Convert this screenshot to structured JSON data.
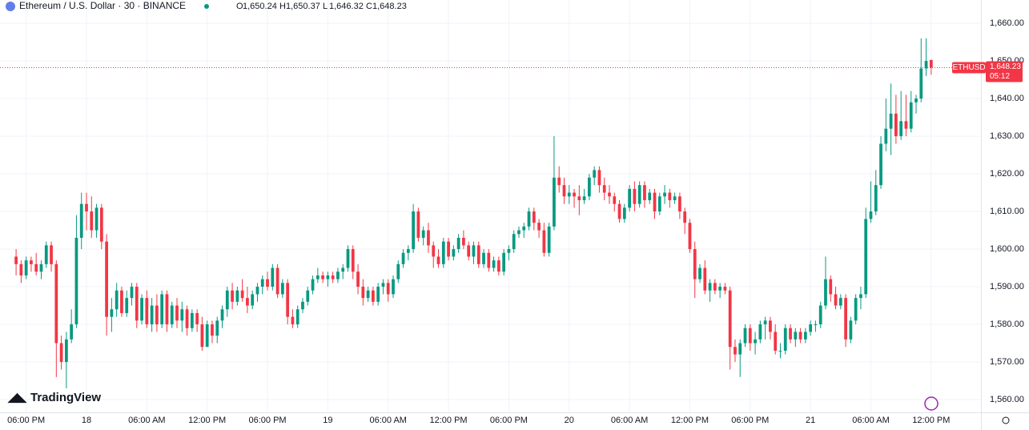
{
  "chart_data": {
    "type": "candlestick",
    "title": "Ethereum / U.S. Dollar · 30 · BINANCE",
    "ohlc_labels": [
      {
        "label": "O",
        "value": "1,650.24"
      },
      {
        "label": "H",
        "value": "1,650.37"
      },
      {
        "label": "L",
        "value": "1,646.32"
      },
      {
        "label": "C",
        "value": "1,648.23"
      }
    ],
    "brand": "TradingView",
    "last_price": {
      "symbol": "ETHUSD",
      "value": 1648.23,
      "label": "1,648.23",
      "countdown": "05:12"
    },
    "up_color": "#089981",
    "down_color": "#f23645",
    "ylim": [
      1556.6,
      1666.2
    ],
    "yticks": [
      {
        "value": 1560,
        "label": "1,560.00"
      },
      {
        "value": 1570,
        "label": "1,570.00"
      },
      {
        "value": 1580,
        "label": "1,580.00"
      },
      {
        "value": 1590,
        "label": "1,590.00"
      },
      {
        "value": 1600,
        "label": "1,600.00"
      },
      {
        "value": 1610,
        "label": "1,610.00"
      },
      {
        "value": 1620,
        "label": "1,620.00"
      },
      {
        "value": 1630,
        "label": "1,630.00"
      },
      {
        "value": 1640,
        "label": "1,640.00"
      },
      {
        "value": 1650,
        "label": "1,650.00"
      },
      {
        "value": 1660,
        "label": "1,660.00"
      }
    ],
    "xlim": [
      -3.2,
      191.9
    ],
    "xticks": [
      {
        "value": 2,
        "label": "06:00 PM"
      },
      {
        "value": 14,
        "label": "18"
      },
      {
        "value": 26,
        "label": "06:00 AM"
      },
      {
        "value": 38,
        "label": "12:00 PM"
      },
      {
        "value": 50,
        "label": "06:00 PM"
      },
      {
        "value": 62,
        "label": "19"
      },
      {
        "value": 74,
        "label": "06:00 AM"
      },
      {
        "value": 86,
        "label": "12:00 PM"
      },
      {
        "value": 98,
        "label": "06:00 PM"
      },
      {
        "value": 110,
        "label": "20"
      },
      {
        "value": 122,
        "label": "06:00 AM"
      },
      {
        "value": 134,
        "label": "12:00 PM"
      },
      {
        "value": 146,
        "label": "06:00 PM"
      },
      {
        "value": 158,
        "label": "21"
      },
      {
        "value": 170,
        "label": "06:00 AM"
      },
      {
        "value": 182,
        "label": "12:00 PM"
      }
    ],
    "grid": true,
    "ohlc": [
      [
        1598,
        1600,
        1593,
        1596
      ],
      [
        1596,
        1597,
        1591,
        1593
      ],
      [
        1593,
        1598,
        1592,
        1597
      ],
      [
        1597,
        1598,
        1594,
        1596
      ],
      [
        1596,
        1599,
        1593,
        1594
      ],
      [
        1594,
        1597,
        1592,
        1596
      ],
      [
        1596,
        1602,
        1595,
        1601
      ],
      [
        1601,
        1602,
        1594,
        1596
      ],
      [
        1596,
        1597,
        1566,
        1575
      ],
      [
        1575,
        1577,
        1568,
        1570
      ],
      [
        1570,
        1578,
        1563,
        1576
      ],
      [
        1576,
        1584,
        1575,
        1580
      ],
      [
        1580,
        1609,
        1579,
        1603
      ],
      [
        1603,
        1615,
        1600,
        1612
      ],
      [
        1612,
        1615,
        1605,
        1610
      ],
      [
        1610,
        1614,
        1603,
        1605
      ],
      [
        1605,
        1612,
        1603,
        1611
      ],
      [
        1611,
        1612,
        1600,
        1602
      ],
      [
        1602,
        1604,
        1577,
        1582
      ],
      [
        1582,
        1587,
        1578,
        1584
      ],
      [
        1584,
        1591,
        1582,
        1589
      ],
      [
        1589,
        1590,
        1582,
        1583
      ],
      [
        1583,
        1589,
        1582,
        1587
      ],
      [
        1587,
        1591,
        1585,
        1590
      ],
      [
        1590,
        1591,
        1579,
        1581
      ],
      [
        1581,
        1588,
        1580,
        1587
      ],
      [
        1587,
        1589,
        1579,
        1580
      ],
      [
        1580,
        1587,
        1578,
        1585
      ],
      [
        1585,
        1588,
        1578,
        1580
      ],
      [
        1580,
        1589,
        1579,
        1588
      ],
      [
        1588,
        1589,
        1578,
        1580
      ],
      [
        1580,
        1586,
        1579,
        1585
      ],
      [
        1585,
        1587,
        1579,
        1581
      ],
      [
        1581,
        1586,
        1578,
        1584
      ],
      [
        1584,
        1585,
        1577,
        1579
      ],
      [
        1579,
        1584,
        1578,
        1583
      ],
      [
        1583,
        1584,
        1578,
        1580
      ],
      [
        1580,
        1582,
        1573,
        1574
      ],
      [
        1574,
        1581,
        1574,
        1580
      ],
      [
        1580,
        1581,
        1575,
        1577
      ],
      [
        1577,
        1582,
        1575,
        1581
      ],
      [
        1581,
        1585,
        1579,
        1584
      ],
      [
        1584,
        1590,
        1582,
        1589
      ],
      [
        1589,
        1591,
        1584,
        1586
      ],
      [
        1586,
        1590,
        1585,
        1589
      ],
      [
        1589,
        1592,
        1586,
        1587
      ],
      [
        1587,
        1590,
        1583,
        1585
      ],
      [
        1585,
        1589,
        1584,
        1588
      ],
      [
        1588,
        1591,
        1586,
        1590
      ],
      [
        1590,
        1593,
        1588,
        1592
      ],
      [
        1592,
        1594,
        1589,
        1590
      ],
      [
        1590,
        1596,
        1589,
        1595
      ],
      [
        1595,
        1596,
        1587,
        1588
      ],
      [
        1588,
        1592,
        1587,
        1591
      ],
      [
        1591,
        1592,
        1580,
        1582
      ],
      [
        1582,
        1584,
        1579,
        1580
      ],
      [
        1580,
        1585,
        1579,
        1584
      ],
      [
        1584,
        1587,
        1583,
        1586
      ],
      [
        1586,
        1590,
        1585,
        1589
      ],
      [
        1589,
        1593,
        1588,
        1592
      ],
      [
        1592,
        1595,
        1591,
        1593
      ],
      [
        1593,
        1594,
        1591,
        1592
      ],
      [
        1592,
        1594,
        1590,
        1593
      ],
      [
        1593,
        1594,
        1591,
        1592
      ],
      [
        1592,
        1595,
        1591,
        1594
      ],
      [
        1594,
        1596,
        1592,
        1595
      ],
      [
        1595,
        1601,
        1594,
        1600
      ],
      [
        1600,
        1601,
        1592,
        1594
      ],
      [
        1594,
        1596,
        1588,
        1590
      ],
      [
        1590,
        1592,
        1585,
        1587
      ],
      [
        1587,
        1590,
        1586,
        1589
      ],
      [
        1589,
        1590,
        1585,
        1586
      ],
      [
        1586,
        1591,
        1585,
        1590
      ],
      [
        1590,
        1592,
        1588,
        1591
      ],
      [
        1591,
        1592,
        1586,
        1588
      ],
      [
        1588,
        1593,
        1587,
        1592
      ],
      [
        1592,
        1597,
        1591,
        1596
      ],
      [
        1596,
        1600,
        1595,
        1599
      ],
      [
        1599,
        1601,
        1597,
        1600
      ],
      [
        1600,
        1612,
        1599,
        1610
      ],
      [
        1610,
        1611,
        1602,
        1603
      ],
      [
        1603,
        1606,
        1601,
        1605
      ],
      [
        1605,
        1607,
        1599,
        1601
      ],
      [
        1601,
        1602,
        1595,
        1598
      ],
      [
        1598,
        1600,
        1595,
        1596
      ],
      [
        1596,
        1603,
        1595,
        1602
      ],
      [
        1602,
        1603,
        1597,
        1598
      ],
      [
        1598,
        1601,
        1597,
        1600
      ],
      [
        1600,
        1604,
        1599,
        1603
      ],
      [
        1603,
        1605,
        1600,
        1601
      ],
      [
        1601,
        1602,
        1597,
        1598
      ],
      [
        1598,
        1602,
        1596,
        1601
      ],
      [
        1601,
        1602,
        1595,
        1596
      ],
      [
        1596,
        1600,
        1595,
        1599
      ],
      [
        1599,
        1600,
        1594,
        1595
      ],
      [
        1595,
        1598,
        1594,
        1597
      ],
      [
        1597,
        1598,
        1593,
        1594
      ],
      [
        1594,
        1600,
        1593,
        1599
      ],
      [
        1599,
        1601,
        1597,
        1600
      ],
      [
        1600,
        1605,
        1599,
        1604
      ],
      [
        1604,
        1606,
        1603,
        1605
      ],
      [
        1605,
        1607,
        1603,
        1606
      ],
      [
        1606,
        1611,
        1605,
        1610
      ],
      [
        1610,
        1611,
        1605,
        1607
      ],
      [
        1607,
        1608,
        1603,
        1605
      ],
      [
        1605,
        1607,
        1598,
        1599
      ],
      [
        1599,
        1607,
        1598,
        1606
      ],
      [
        1606,
        1630,
        1605,
        1619
      ],
      [
        1619,
        1622,
        1615,
        1617
      ],
      [
        1617,
        1619,
        1612,
        1614
      ],
      [
        1614,
        1617,
        1612,
        1615
      ],
      [
        1615,
        1616,
        1611,
        1614
      ],
      [
        1614,
        1617,
        1609,
        1613
      ],
      [
        1613,
        1616,
        1612,
        1614
      ],
      [
        1614,
        1620,
        1613,
        1619
      ],
      [
        1619,
        1622,
        1617,
        1621
      ],
      [
        1621,
        1622,
        1615,
        1617
      ],
      [
        1617,
        1619,
        1613,
        1615
      ],
      [
        1615,
        1617,
        1612,
        1614
      ],
      [
        1614,
        1615,
        1610,
        1612
      ],
      [
        1612,
        1613,
        1607,
        1608
      ],
      [
        1608,
        1612,
        1607,
        1611
      ],
      [
        1611,
        1617,
        1610,
        1616
      ],
      [
        1616,
        1618,
        1610,
        1612
      ],
      [
        1612,
        1618,
        1611,
        1617
      ],
      [
        1617,
        1618,
        1611,
        1613
      ],
      [
        1613,
        1616,
        1612,
        1615
      ],
      [
        1615,
        1616,
        1608,
        1610
      ],
      [
        1610,
        1615,
        1609,
        1614
      ],
      [
        1614,
        1617,
        1612,
        1615
      ],
      [
        1615,
        1616,
        1611,
        1613
      ],
      [
        1613,
        1615,
        1612,
        1614
      ],
      [
        1614,
        1615,
        1608,
        1610
      ],
      [
        1610,
        1611,
        1604,
        1607
      ],
      [
        1607,
        1608,
        1599,
        1600
      ],
      [
        1600,
        1602,
        1587,
        1592
      ],
      [
        1592,
        1596,
        1591,
        1595
      ],
      [
        1595,
        1597,
        1588,
        1589
      ],
      [
        1589,
        1592,
        1586,
        1591
      ],
      [
        1591,
        1592,
        1588,
        1589
      ],
      [
        1589,
        1591,
        1587,
        1590
      ],
      [
        1590,
        1591,
        1588,
        1589
      ],
      [
        1589,
        1590,
        1568,
        1574
      ],
      [
        1574,
        1576,
        1570,
        1572
      ],
      [
        1572,
        1576,
        1566,
        1575
      ],
      [
        1575,
        1580,
        1574,
        1579
      ],
      [
        1579,
        1580,
        1573,
        1575
      ],
      [
        1575,
        1578,
        1572,
        1576
      ],
      [
        1576,
        1581,
        1575,
        1580
      ],
      [
        1580,
        1582,
        1576,
        1581
      ],
      [
        1581,
        1582,
        1576,
        1578
      ],
      [
        1578,
        1580,
        1572,
        1573
      ],
      [
        1573,
        1575,
        1571,
        1573
      ],
      [
        1573,
        1580,
        1572,
        1579
      ],
      [
        1579,
        1580,
        1575,
        1576
      ],
      [
        1576,
        1579,
        1574,
        1578
      ],
      [
        1578,
        1579,
        1575,
        1576
      ],
      [
        1576,
        1579,
        1575,
        1578
      ],
      [
        1578,
        1581,
        1577,
        1580
      ],
      [
        1580,
        1581,
        1578,
        1580
      ],
      [
        1580,
        1586,
        1579,
        1585
      ],
      [
        1585,
        1598,
        1584,
        1592
      ],
      [
        1592,
        1593,
        1586,
        1588
      ],
      [
        1588,
        1590,
        1584,
        1585
      ],
      [
        1585,
        1588,
        1584,
        1587
      ],
      [
        1587,
        1588,
        1574,
        1576
      ],
      [
        1576,
        1582,
        1575,
        1581
      ],
      [
        1581,
        1588,
        1580,
        1587
      ],
      [
        1587,
        1590,
        1584,
        1588
      ],
      [
        1588,
        1611,
        1587,
        1608
      ],
      [
        1608,
        1618,
        1607,
        1610
      ],
      [
        1610,
        1621,
        1609,
        1617
      ],
      [
        1617,
        1630,
        1616,
        1628
      ],
      [
        1628,
        1640,
        1626,
        1632
      ],
      [
        1632,
        1644,
        1625,
        1636
      ],
      [
        1636,
        1641,
        1628,
        1630
      ],
      [
        1630,
        1642,
        1629,
        1634
      ],
      [
        1634,
        1641,
        1630,
        1632
      ],
      [
        1632,
        1642,
        1631,
        1639
      ],
      [
        1639,
        1641,
        1636,
        1640
      ],
      [
        1640,
        1656,
        1639,
        1648
      ],
      [
        1648,
        1656,
        1646,
        1650
      ],
      [
        1650.24,
        1650.37,
        1646.32,
        1648.23
      ]
    ]
  }
}
